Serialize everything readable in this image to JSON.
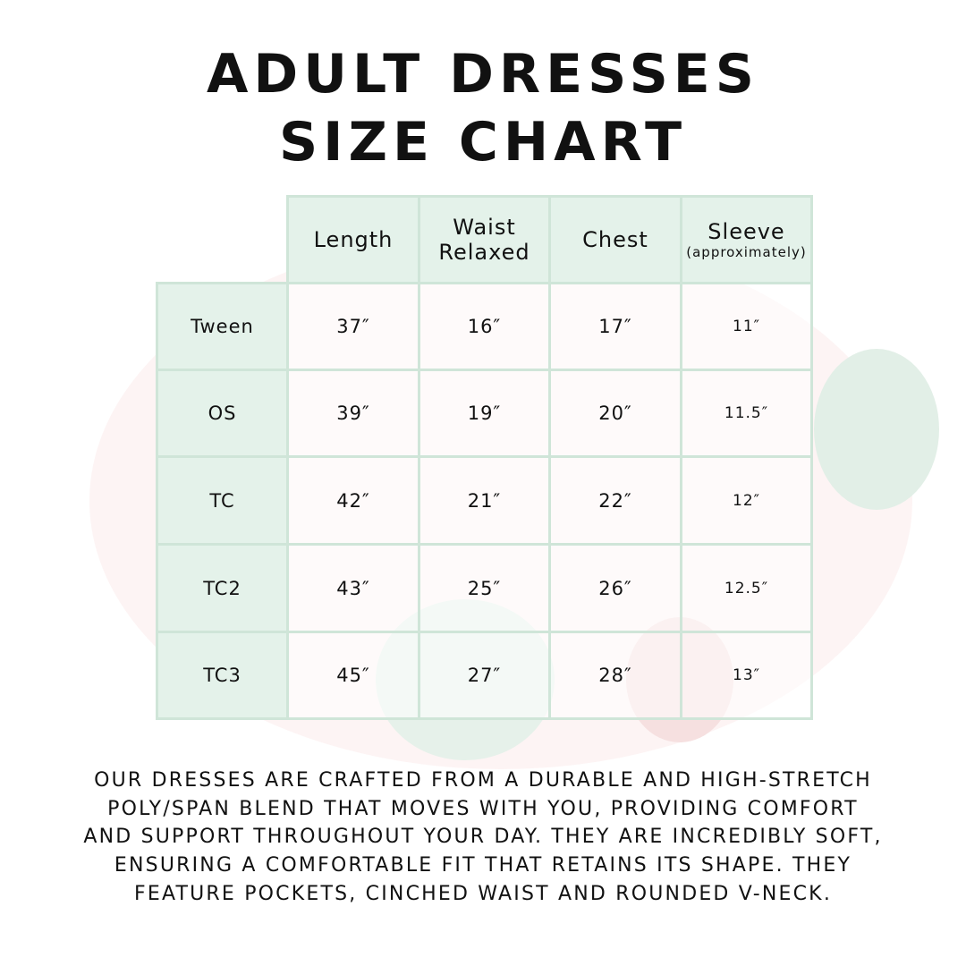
{
  "header": {
    "title_lines": [
      "ADULT DRESSES",
      "SIZE CHART"
    ]
  },
  "table": {
    "columns": [
      {
        "lines": [
          "Length"
        ]
      },
      {
        "lines": [
          "Waist",
          "Relaxed"
        ]
      },
      {
        "lines": [
          "Chest"
        ]
      },
      {
        "lines": [
          "Sleeve"
        ],
        "note": "(approximately)"
      }
    ],
    "rows": [
      {
        "size": "Tween",
        "cells": [
          "37″",
          "16″",
          "17″",
          "11″"
        ]
      },
      {
        "size": "OS",
        "cells": [
          "39″",
          "19″",
          "20″",
          "11.5″"
        ]
      },
      {
        "size": "TC",
        "cells": [
          "42″",
          "21″",
          "22″",
          "12″"
        ]
      },
      {
        "size": "TC2",
        "cells": [
          "43″",
          "25″",
          "26″",
          "12.5″"
        ]
      },
      {
        "size": "TC3",
        "cells": [
          "45″",
          "27″",
          "28″",
          "13″"
        ]
      }
    ]
  },
  "description": {
    "lines": [
      "OUR DRESSES ARE CRAFTED FROM A DURABLE AND HIGH-STRETCH",
      "POLY/SPAN BLEND THAT MOVES WITH YOU, PROVIDING COMFORT",
      "AND SUPPORT THROUGHOUT YOUR DAY. THEY ARE INCREDIBLY SOFT,",
      "ENSURING A COMFORTABLE FIT THAT RETAINS ITS SHAPE. THEY",
      "FEATURE POCKETS, CINCHED WAIST AND ROUNDED V-NECK."
    ]
  }
}
